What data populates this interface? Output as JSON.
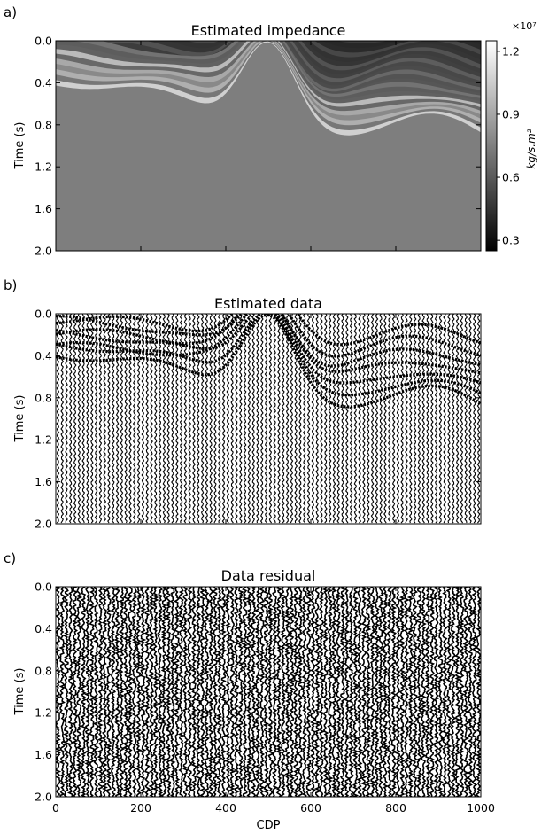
{
  "chart_data": [
    {
      "type": "heatmap",
      "panel_label": "a)",
      "title": "Estimated impedance",
      "ylabel": "Time (s)",
      "xlabel": "",
      "xlim": [
        0,
        1000
      ],
      "ylim": [
        2.0,
        0.0
      ],
      "yticks": [
        "0.0",
        "0.4",
        "0.8",
        "1.2",
        "1.6",
        "2.0"
      ],
      "xticks": [
        0,
        200,
        400,
        600,
        800,
        1000
      ],
      "colorbar": {
        "label": "kg/s.m²",
        "exponent": "×10⁷",
        "range": [
          0.25,
          1.25
        ],
        "ticks": [
          "0.3",
          "0.6",
          "0.9",
          "1.2"
        ],
        "colormap": "gray"
      }
    },
    {
      "type": "wiggle",
      "panel_label": "b)",
      "title": "Estimated data",
      "ylabel": "Time (s)",
      "xlabel": "",
      "xlim": [
        0,
        1000
      ],
      "ylim": [
        2.0,
        0.0
      ],
      "yticks": [
        "0.0",
        "0.4",
        "0.8",
        "1.2",
        "1.6",
        "2.0"
      ],
      "xticks": [
        0,
        200,
        400,
        600,
        800,
        1000
      ]
    },
    {
      "type": "wiggle",
      "panel_label": "c)",
      "title": "Data residual",
      "ylabel": "Time (s)",
      "xlabel": "CDP",
      "xlim": [
        0,
        1000
      ],
      "ylim": [
        2.0,
        0.0
      ],
      "yticks": [
        "0.0",
        "0.4",
        "0.8",
        "1.2",
        "1.6",
        "2.0"
      ],
      "xticks": [
        "0",
        "200",
        "400",
        "600",
        "800",
        "1000"
      ]
    }
  ]
}
